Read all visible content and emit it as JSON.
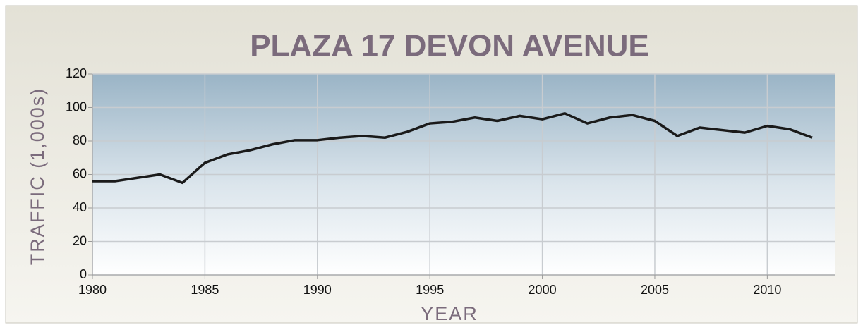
{
  "chart_data": {
    "type": "line",
    "title": "PLAZA 17 DEVON AVENUE",
    "x_label": "YEAR",
    "y_label": "TRAFFIC (1,000s)",
    "x": [
      1980,
      1981,
      1982,
      1983,
      1984,
      1985,
      1986,
      1987,
      1988,
      1989,
      1990,
      1991,
      1992,
      1993,
      1994,
      1995,
      1996,
      1997,
      1998,
      1999,
      2000,
      2001,
      2002,
      2003,
      2004,
      2005,
      2006,
      2007,
      2008,
      2009,
      2010,
      2011,
      2012
    ],
    "series": [
      {
        "name": "Traffic",
        "color": "#1a1a1a",
        "values": [
          56,
          56,
          58,
          60,
          55,
          67,
          72,
          74.5,
          78,
          80.5,
          80.5,
          82,
          83,
          82,
          85.5,
          90.5,
          91.5,
          94,
          92,
          95,
          93,
          96.5,
          90.5,
          94,
          95.5,
          92,
          83,
          88,
          86.5,
          85,
          89,
          87,
          82
        ]
      }
    ],
    "xlim": [
      1980,
      2013
    ],
    "xticks": [
      1980,
      1985,
      1990,
      1995,
      2000,
      2005,
      2010
    ],
    "ylim": [
      0,
      120
    ],
    "yticks": [
      0,
      20,
      40,
      60,
      80,
      100,
      120
    ],
    "grid": true
  }
}
